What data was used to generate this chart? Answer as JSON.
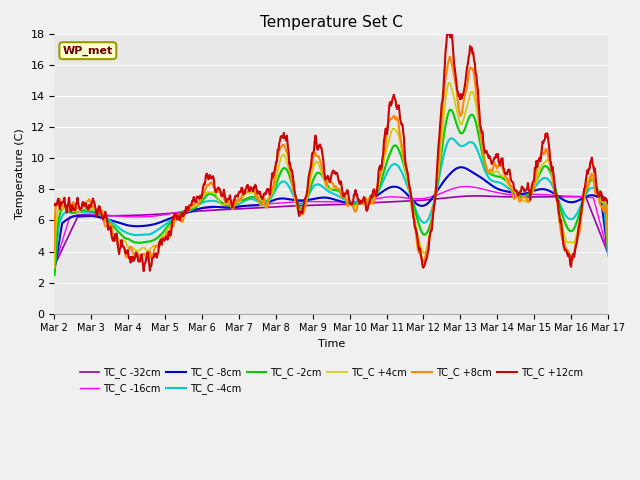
{
  "title": "Temperature Set C",
  "xlabel": "Time",
  "ylabel": "Temperature (C)",
  "ylim": [
    0,
    18
  ],
  "xlim": [
    0,
    15
  ],
  "xtick_labels": [
    "Mar 2",
    "Mar 3",
    "Mar 4",
    "Mar 5",
    "Mar 6",
    "Mar 7",
    "Mar 8",
    "Mar 9",
    "Mar 10",
    "Mar 11",
    "Mar 12",
    "Mar 13",
    "Mar 14",
    "Mar 15",
    "Mar 16",
    "Mar 17"
  ],
  "xtick_positions": [
    0,
    1,
    2,
    3,
    4,
    5,
    6,
    7,
    8,
    9,
    10,
    11,
    12,
    13,
    14,
    15
  ],
  "ytick_positions": [
    0,
    2,
    4,
    6,
    8,
    10,
    12,
    14,
    16,
    18
  ],
  "wp_met_label": "WP_met",
  "fig_facecolor": "#f0f0f0",
  "ax_facecolor": "#e8e8e8",
  "grid_color": "#ffffff",
  "series": [
    {
      "label": "TC_C -32cm",
      "color": "#9900aa",
      "lw": 1.2
    },
    {
      "label": "TC_C -16cm",
      "color": "#ff00ff",
      "lw": 1.0
    },
    {
      "label": "TC_C -8cm",
      "color": "#0000cc",
      "lw": 1.5
    },
    {
      "label": "TC_C -4cm",
      "color": "#00cccc",
      "lw": 1.5
    },
    {
      "label": "TC_C -2cm",
      "color": "#00cc00",
      "lw": 1.5
    },
    {
      "label": "TC_C +4cm",
      "color": "#cccc00",
      "lw": 1.2
    },
    {
      "label": "TC_C +8cm",
      "color": "#ff8800",
      "lw": 1.5
    },
    {
      "label": "TC_C +12cm",
      "color": "#cc0000",
      "lw": 1.5
    }
  ]
}
